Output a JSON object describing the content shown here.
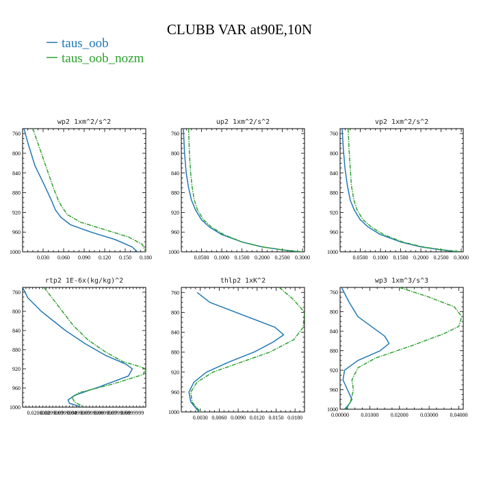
{
  "figure": {
    "title": "CLUBB VAR at90E,10N",
    "legend": [
      {
        "name": "taus_oob",
        "color": "#1f77b4",
        "dash": "solid"
      },
      {
        "name": "taus_oob_nozm",
        "color": "#2ca02c",
        "dash": "dashdot"
      }
    ]
  },
  "chart_data": [
    {
      "type": "line",
      "title": "wp2  1xm^2/s^2",
      "xlim": [
        0,
        0.18
      ],
      "ylim": [
        1000,
        750
      ],
      "xticks": [
        0.03,
        0.06,
        0.09,
        0.12,
        0.15,
        0.18
      ],
      "xtick_labels": [
        "0.030",
        "0.060",
        "0.090",
        "0.120",
        "0.150",
        "0.180"
      ],
      "yticks": [
        760,
        800,
        840,
        880,
        920,
        960,
        1000
      ],
      "series": [
        {
          "name": "taus_oob",
          "x": [
            0.002,
            0.008,
            0.018,
            0.032,
            0.042,
            0.048,
            0.056,
            0.07,
            0.1,
            0.135,
            0.16,
            0.168
          ],
          "y": [
            750,
            780,
            825,
            865,
            895,
            915,
            930,
            945,
            960,
            975,
            990,
            1000
          ]
        },
        {
          "name": "taus_oob_nozm",
          "x": [
            0.015,
            0.025,
            0.035,
            0.045,
            0.052,
            0.058,
            0.066,
            0.085,
            0.12,
            0.155,
            0.175,
            0.18
          ],
          "y": [
            750,
            790,
            830,
            870,
            895,
            910,
            925,
            940,
            955,
            970,
            985,
            1000
          ]
        }
      ]
    },
    {
      "type": "line",
      "title": "up2  1xm^2/s^2",
      "xlim": [
        0,
        0.305
      ],
      "ylim": [
        1000,
        750
      ],
      "xticks": [
        0.05,
        0.1,
        0.15,
        0.2,
        0.25,
        0.3
      ],
      "xtick_labels": [
        "0.0500",
        "0.1000",
        "0.1500",
        "0.2000",
        "0.2500",
        "0.3000"
      ],
      "yticks": [
        760,
        800,
        840,
        880,
        920,
        960,
        1000
      ],
      "series": [
        {
          "name": "taus_oob",
          "x": [
            0.005,
            0.008,
            0.012,
            0.018,
            0.025,
            0.035,
            0.05,
            0.07,
            0.1,
            0.15,
            0.2,
            0.25,
            0.29
          ],
          "y": [
            750,
            800,
            840,
            870,
            895,
            915,
            935,
            950,
            965,
            980,
            990,
            996,
            1000
          ]
        },
        {
          "name": "taus_oob_nozm",
          "x": [
            0.018,
            0.02,
            0.023,
            0.027,
            0.032,
            0.04,
            0.055,
            0.075,
            0.105,
            0.15,
            0.2,
            0.25,
            0.3
          ],
          "y": [
            750,
            800,
            840,
            870,
            895,
            915,
            935,
            950,
            965,
            980,
            990,
            996,
            1000
          ]
        }
      ]
    },
    {
      "type": "line",
      "title": "vp2  1xm^2/s^2",
      "xlim": [
        0,
        0.305
      ],
      "ylim": [
        1000,
        750
      ],
      "xticks": [
        0.05,
        0.1,
        0.15,
        0.2,
        0.25,
        0.3
      ],
      "xtick_labels": [
        "0.0500",
        "0.1000",
        "0.1500",
        "0.2000",
        "0.2500",
        "0.3000"
      ],
      "yticks": [
        760,
        800,
        840,
        880,
        920,
        960,
        1000
      ],
      "series": [
        {
          "name": "taus_oob",
          "x": [
            0.005,
            0.008,
            0.012,
            0.018,
            0.025,
            0.035,
            0.05,
            0.07,
            0.1,
            0.15,
            0.2,
            0.25,
            0.29
          ],
          "y": [
            750,
            790,
            830,
            865,
            895,
            915,
            935,
            950,
            965,
            980,
            990,
            996,
            1000
          ]
        },
        {
          "name": "taus_oob_nozm",
          "x": [
            0.02,
            0.022,
            0.025,
            0.028,
            0.034,
            0.042,
            0.057,
            0.078,
            0.108,
            0.155,
            0.205,
            0.255,
            0.3
          ],
          "y": [
            750,
            790,
            830,
            865,
            895,
            915,
            935,
            950,
            965,
            980,
            990,
            996,
            1000
          ]
        }
      ]
    },
    {
      "type": "line",
      "title": "rtp2  1E-6x(kg/kg)^2",
      "xlim": [
        0.008,
        0.1
      ],
      "ylim": [
        1000,
        750
      ],
      "xticks": [
        0.02,
        0.03,
        0.04,
        0.05,
        0.06,
        0.07,
        0.08,
        0.09
      ],
      "xtick_labels": [
        "0.0200000",
        "0.0299999",
        "0.0399999",
        "0.0499999",
        "0.0599999",
        "0.0699999",
        "0.0799999",
        "0.0899999"
      ],
      "yticks": [
        760,
        800,
        840,
        880,
        920,
        960,
        1000
      ],
      "series": [
        {
          "name": "taus_oob",
          "x": [
            0.008,
            0.012,
            0.022,
            0.04,
            0.055,
            0.07,
            0.085,
            0.09,
            0.087,
            0.065,
            0.047,
            0.042,
            0.043,
            0.05
          ],
          "y": [
            750,
            772,
            800,
            840,
            868,
            892,
            910,
            920,
            935,
            958,
            975,
            985,
            992,
            998
          ]
        },
        {
          "name": "taus_oob_nozm",
          "x": [
            0.024,
            0.035,
            0.046,
            0.057,
            0.07,
            0.083,
            0.095,
            0.1,
            0.098,
            0.075,
            0.05,
            0.045,
            0.047,
            0.053
          ],
          "y": [
            750,
            790,
            830,
            860,
            885,
            905,
            915,
            920,
            932,
            952,
            970,
            980,
            990,
            998
          ]
        }
      ]
    },
    {
      "type": "line",
      "title": "thlp2  1xK^2",
      "xlim": [
        0,
        0.0195
      ],
      "ylim": [
        1000,
        750
      ],
      "xticks": [
        0.003,
        0.006,
        0.009,
        0.012,
        0.015,
        0.018
      ],
      "xtick_labels": [
        "0.0030",
        "0.0060",
        "0.0090",
        "0.0120",
        "0.0150",
        "0.0180"
      ],
      "yticks": [
        760,
        800,
        840,
        880,
        920,
        960,
        1000
      ],
      "series": [
        {
          "name": "taus_oob",
          "x": [
            0.0025,
            0.0045,
            0.0148,
            0.0162,
            0.0145,
            0.0115,
            0.0075,
            0.004,
            0.002,
            0.0012,
            0.0015,
            0.0028
          ],
          "y": [
            760,
            780,
            830,
            845,
            860,
            880,
            900,
            920,
            940,
            960,
            980,
            1000
          ]
        },
        {
          "name": "taus_oob_nozm",
          "x": [
            0.0155,
            0.0178,
            0.0195,
            0.0193,
            0.0178,
            0.014,
            0.0095,
            0.005,
            0.0025,
            0.0015,
            0.0017,
            0.003
          ],
          "y": [
            750,
            775,
            800,
            830,
            855,
            880,
            900,
            920,
            940,
            960,
            980,
            1000
          ]
        }
      ]
    },
    {
      "type": "line",
      "title": "wp3  1xm^3/s^3",
      "xlim": [
        0,
        0.0415
      ],
      "ylim": [
        1000,
        750
      ],
      "xticks": [
        0,
        0.01,
        0.02,
        0.03,
        0.04
      ],
      "xtick_labels": [
        "0.00000",
        "0.01000",
        "0.02000",
        "0.03000",
        "0.04000"
      ],
      "yticks": [
        760,
        800,
        840,
        880,
        920,
        960,
        1000
      ],
      "series": [
        {
          "name": "taus_oob",
          "x": [
            0.0005,
            0.003,
            0.006,
            0.015,
            0.0165,
            0.0135,
            0.006,
            0.0015,
            0.001,
            0.0025,
            0.004,
            0.003,
            0.0015
          ],
          "y": [
            750,
            780,
            810,
            850,
            865,
            880,
            900,
            920,
            940,
            960,
            980,
            990,
            1000
          ]
        },
        {
          "name": "taus_oob_nozm",
          "x": [
            0.02,
            0.03,
            0.0385,
            0.041,
            0.04,
            0.035,
            0.024,
            0.012,
            0.006,
            0.004,
            0.0045,
            0.0035,
            0.002
          ],
          "y": [
            750,
            770,
            790,
            810,
            830,
            845,
            870,
            895,
            915,
            940,
            960,
            985,
            1000
          ]
        }
      ]
    }
  ]
}
